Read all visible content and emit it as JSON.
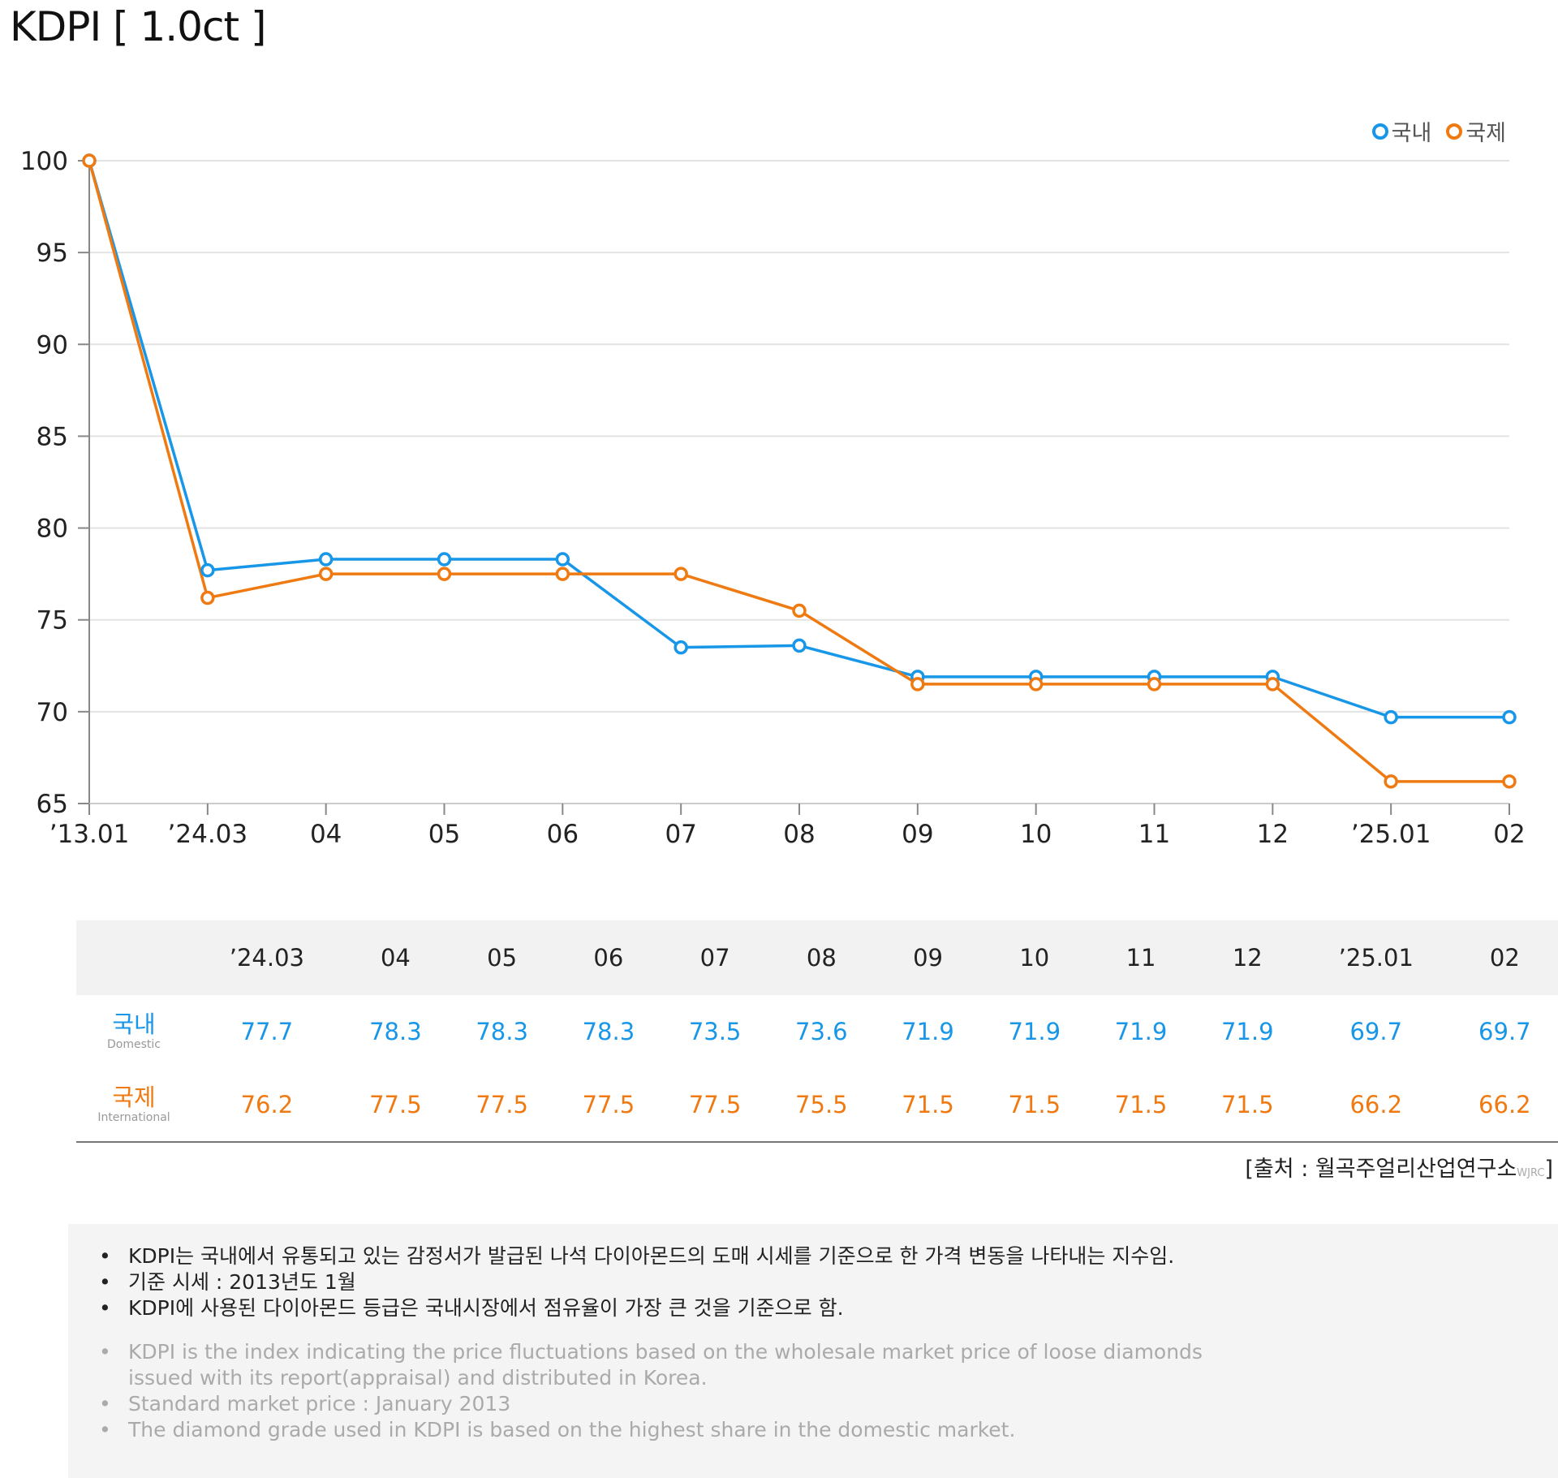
{
  "title": "KDPI [ 1.0ct ]",
  "legend": {
    "domestic": "국내",
    "international": "국제"
  },
  "colors": {
    "domestic": "#1896e8",
    "international": "#f07a12",
    "grid": "#e3e3e3",
    "axis": "#888888"
  },
  "chart_data": {
    "type": "line",
    "categories": [
      "’13.01",
      "’24.03",
      "04",
      "05",
      "06",
      "07",
      "08",
      "09",
      "10",
      "11",
      "12",
      "’25.01",
      "02"
    ],
    "series": [
      {
        "name": "국내",
        "values": [
          100,
          77.7,
          78.3,
          78.3,
          78.3,
          73.5,
          73.6,
          71.9,
          71.9,
          71.9,
          71.9,
          69.7,
          69.7
        ]
      },
      {
        "name": "국제",
        "values": [
          100,
          76.2,
          77.5,
          77.5,
          77.5,
          77.5,
          75.5,
          71.5,
          71.5,
          71.5,
          71.5,
          66.2,
          66.2
        ]
      }
    ],
    "ylim": [
      65,
      100
    ],
    "yticks": [
      65,
      70,
      75,
      80,
      85,
      90,
      95,
      100
    ],
    "grid": true,
    "legend_position": "top-right",
    "marker": "hollow-circle"
  },
  "table": {
    "headers": [
      "’24.03",
      "04",
      "05",
      "06",
      "07",
      "08",
      "09",
      "10",
      "11",
      "12",
      "’25.01",
      "02"
    ],
    "rows": [
      {
        "label": "국내",
        "sublabel": "Domestic",
        "values": [
          "77.7",
          "78.3",
          "78.3",
          "78.3",
          "73.5",
          "73.6",
          "71.9",
          "71.9",
          "71.9",
          "71.9",
          "69.7",
          "69.7"
        ]
      },
      {
        "label": "국제",
        "sublabel": "International",
        "values": [
          "76.2",
          "77.5",
          "77.5",
          "77.5",
          "77.5",
          "75.5",
          "71.5",
          "71.5",
          "71.5",
          "71.5",
          "66.2",
          "66.2"
        ]
      }
    ]
  },
  "source": {
    "prefix": "[출처 : 월곡주얼리산업연구소",
    "abbr": "WJRC",
    "suffix": "]"
  },
  "notes": {
    "ko": [
      "KDPI는 국내에서 유통되고 있는 감정서가 발급된 나석 다이아몬드의 도매 시세를 기준으로 한 가격 변동을 나타내는 지수임.",
      "기준 시세 : 2013년도 1월",
      "KDPI에 사용된 다이아몬드 등급은 국내시장에서 점유율이 가장 큰 것을 기준으로 함."
    ],
    "en": [
      "KDPI is the index indicating the price fluctuations based on the wholesale market price of loose diamonds issued with its report(appraisal) and distributed in Korea.",
      "Standard market price : January 2013",
      "The diamond grade used in KDPI is based on the highest share in the domestic market."
    ]
  }
}
